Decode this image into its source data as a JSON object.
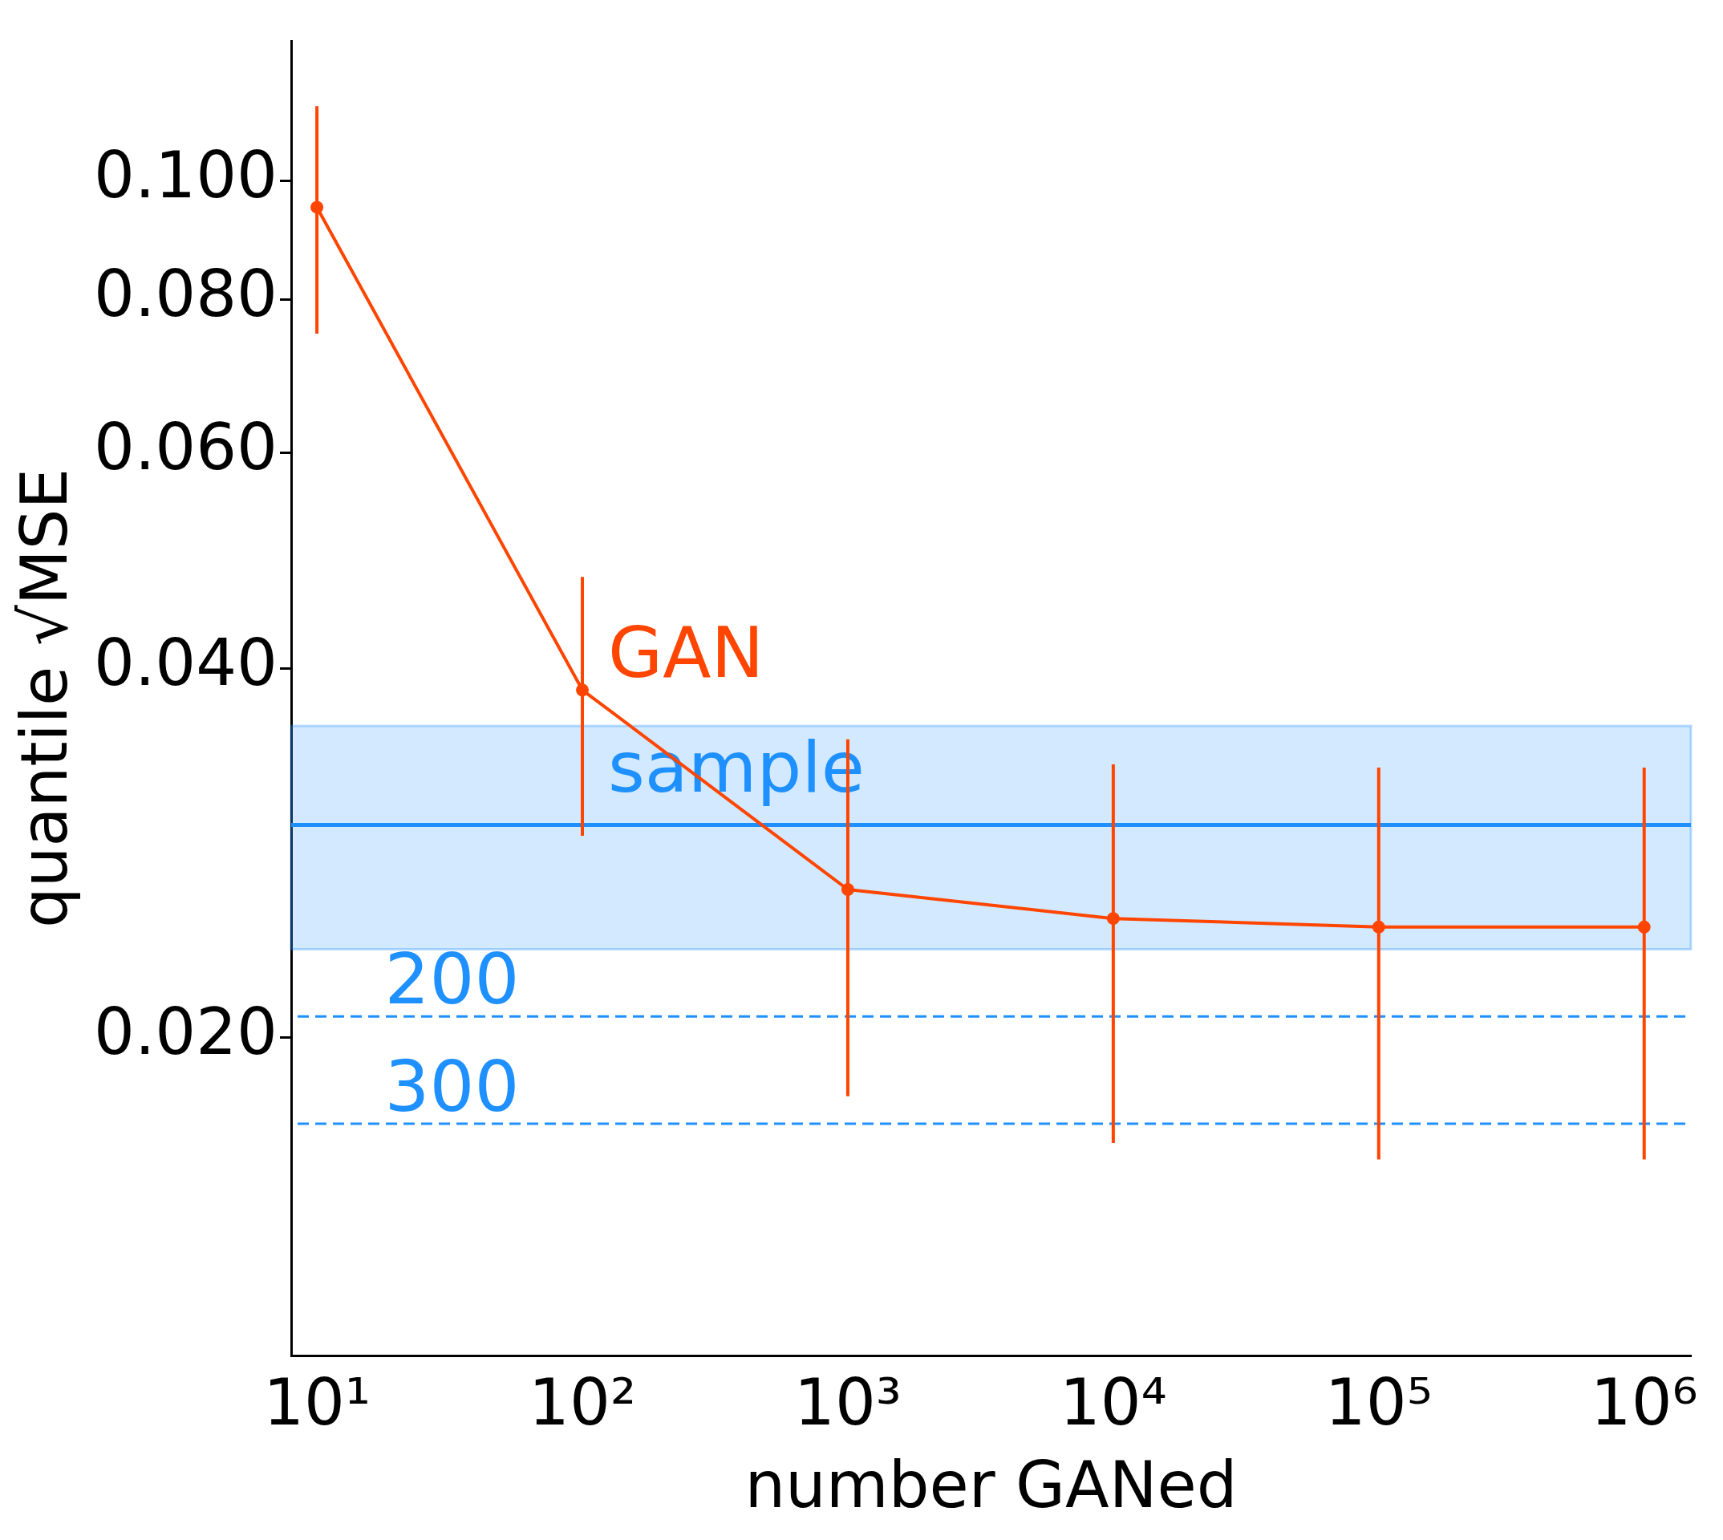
{
  "chart_data": {
    "type": "line",
    "xlabel": "number GANed",
    "ylabel": "quantile √MSE",
    "x": [
      10,
      100,
      1000,
      10000,
      100000,
      1000000
    ],
    "series": [
      {
        "name": "GAN",
        "color": "#ff4500",
        "values": [
          0.0951,
          0.0384,
          0.0264,
          0.025,
          0.0246,
          0.0246
        ],
        "errors": [
          [
            0.075,
            0.115
          ],
          [
            0.0292,
            0.0475
          ],
          [
            0.0179,
            0.035
          ],
          [
            0.0164,
            0.0334
          ],
          [
            0.0159,
            0.0332
          ],
          [
            0.0159,
            0.0332
          ]
        ]
      }
    ],
    "log": "xy",
    "xlim": [
      8,
      1500000
    ],
    "ylim": [
      0.011,
      0.13
    ],
    "xticks": [
      {
        "value": 10,
        "label": "10¹"
      },
      {
        "value": 100,
        "label": "10²"
      },
      {
        "value": 1000,
        "label": "10³"
      },
      {
        "value": 10000,
        "label": "10⁴"
      },
      {
        "value": 100000,
        "label": "10⁵"
      },
      {
        "value": 1000000,
        "label": "10⁶"
      }
    ],
    "yticks": [
      {
        "value": 0.02,
        "label": "0.020"
      },
      {
        "value": 0.04,
        "label": "0.040"
      },
      {
        "value": 0.06,
        "label": "0.060"
      },
      {
        "value": 0.08,
        "label": "0.080"
      },
      {
        "value": 0.1,
        "label": "0.100"
      }
    ],
    "ref_lines": [
      {
        "axis": "y",
        "value": 0.0298,
        "label": "sample",
        "color": "#1e90ff",
        "line_style": "solid"
      },
      {
        "axis": "y",
        "value": 0.0208,
        "color": "#1e90ff",
        "line_style": "dashed"
      },
      {
        "axis": "y",
        "value": 0.017,
        "color": "#1e90ff",
        "line_style": "dashed"
      }
    ],
    "annotations": [
      {
        "text": "200",
        "x": 18,
        "y": 0.0208
      },
      {
        "text": "300",
        "x": 18,
        "y": 0.017
      }
    ],
    "bands": [
      {
        "axis": "y",
        "from": 0.0236,
        "to": 0.0359,
        "color": "#1e90ff"
      }
    ],
    "grid": false,
    "legend": false,
    "marker": "circle",
    "line_style": "solid"
  }
}
